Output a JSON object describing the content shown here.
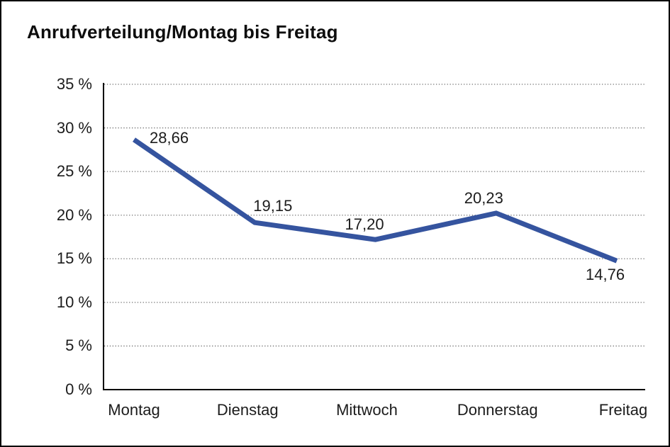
{
  "window": {
    "background": "#ffffff",
    "border_color": "#000000"
  },
  "chart": {
    "title": "Anrufverteilung/Montag bis Freitag"
  },
  "chart_data": {
    "type": "line",
    "title": "Anrufverteilung/Montag bis Freitag",
    "categories": [
      "Montag",
      "Dienstag",
      "Mittwoch",
      "Donnerstag",
      "Freitag"
    ],
    "values": [
      28.66,
      19.15,
      17.2,
      20.23,
      14.76
    ],
    "data_labels": [
      "28,66",
      "19,15",
      "17,20",
      "20,23",
      "14,76"
    ],
    "unit": "%",
    "y_ticks": [
      0,
      5,
      10,
      15,
      20,
      25,
      30,
      35
    ],
    "y_tick_labels": [
      "0 %",
      "5 %",
      "10 %",
      "15 %",
      "20 %",
      "25 %",
      "30 %",
      "35 %"
    ],
    "ylim": [
      0,
      35
    ],
    "grid": "horizontal-dotted",
    "legend": "none",
    "line_color": "#35549F",
    "axis_color": "#000000",
    "grid_color": "#6f6f6f",
    "text_color": "#1c1c1c"
  }
}
